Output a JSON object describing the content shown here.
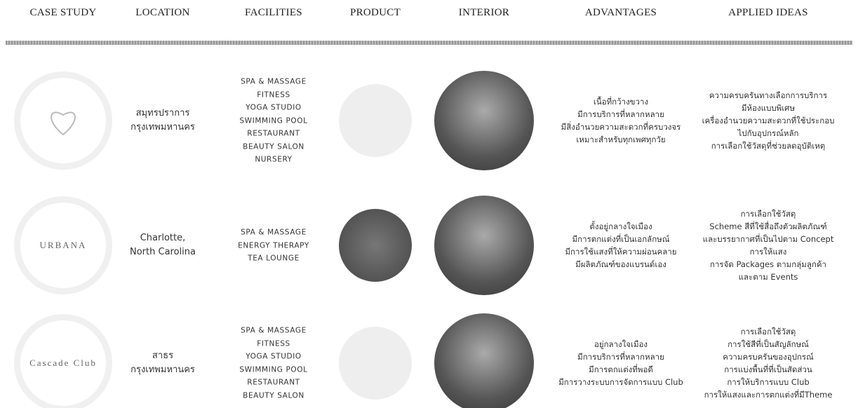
{
  "header": [
    "CASE STUDY",
    "LOCATION",
    "FACILITIES",
    "PRODUCT",
    "INTERIOR",
    "ADVANTAGES",
    "APPLIED IDEAS"
  ],
  "rows": [
    {
      "logo": null,
      "location": [
        "สมุทรปราการ",
        "กรุงเทพมหานคร"
      ],
      "facilities": [
        "SPA & MASSAGE",
        "FITNESS",
        "YOGA STUDIO",
        "SWIMMING POOL",
        "RESTAURANT",
        "BEAUTY SALON",
        "NURSERY"
      ],
      "advantages": [
        "เนื้อที่กว้างขวาง",
        "มีการบริการที่หลากหลาย",
        "มีสิ่งอำนวยความสะดวกที่ครบวงจร",
        "เหมาะสำหรับทุกเพศทุกวัย"
      ],
      "ideas": [
        "ความครบครันทางเลือกการบริการ",
        "มีห้องแบบพิเศษ",
        "เครื่องอำนวยความสะดวกที่ใช้ประกอบ",
        "ไปกับอุปกรณ์หลัก",
        "การเลือกใช้วัสดุที่ช่วยลดอุบัติเหตุ"
      ]
    },
    {
      "logo": "URBANA",
      "location": [
        "Charlotte,",
        "North Carolina"
      ],
      "facilities": [
        "SPA & MASSAGE",
        "ENERGY THERAPY",
        "TEA LOUNGE"
      ],
      "advantages": [
        "ตั้งอยู่กลางใจเมือง",
        "มีการตกแต่งที่เป็นเอกลักษณ์",
        "มีการใช้แสงที่ให้ความผ่อนคลาย",
        "มีผลิตภัณฑ์ของแบรนด์เอง"
      ],
      "ideas": [
        "การเลือกใช้วัสดุ",
        "Scheme สีที่ใช้สื่อถึงตัวผลิตภัณฑ์",
        "และบรรยากาศที่เป็นไปตาม Concept",
        "การให้แสง",
        "การจัด Packages ตามกลุ่มลูกค้า",
        "และตาม Events"
      ]
    },
    {
      "logo": "Cascade Club",
      "location": [
        "สาธร",
        "กรุงเทพมหานคร"
      ],
      "facilities": [
        "SPA & MASSAGE",
        "FITNESS",
        "YOGA STUDIO",
        "SWIMMING POOL",
        "RESTAURANT",
        "BEAUTY SALON"
      ],
      "advantages": [
        "อยู่กลางใจเมือง",
        "มีการบริการที่หลากหลาย",
        "มีการตกแต่งที่พอดี",
        "มีการวางระบบการจัดการแบบ Club"
      ],
      "ideas": [
        "การเลือกใช้วัสดุ",
        "การใช้สีที่เป็นสัญลักษณ์",
        "ความครบครันของอุปกรณ์",
        "การแบ่งพื้นที่ที่เป็นสัดส่วน",
        "การให้บริการแบบ Club",
        "การให้แสงและการตกแต่งที่มีTheme"
      ]
    }
  ]
}
